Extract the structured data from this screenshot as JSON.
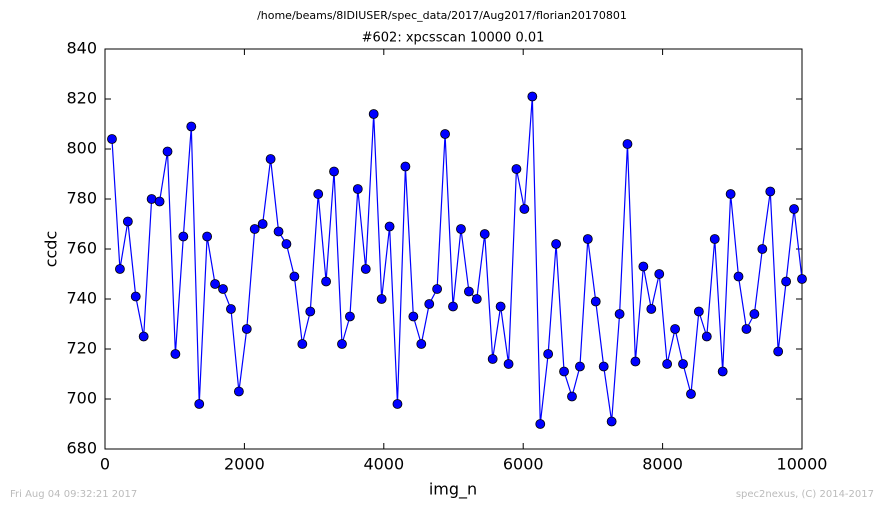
{
  "chart_data": {
    "type": "line",
    "suptitle": "/home/beams/8IDIUSER/spec_data/2017/Aug2017/florian20170801",
    "title": "#602: xpcsscan 10000 0.01",
    "xlabel": "img_n",
    "ylabel": "ccdc",
    "x": [
      100,
      214,
      328,
      441,
      555,
      669,
      783,
      897,
      1010,
      1124,
      1238,
      1352,
      1465,
      1579,
      1693,
      1807,
      1921,
      2034,
      2148,
      2262,
      2376,
      2490,
      2603,
      2717,
      2831,
      2945,
      3059,
      3172,
      3286,
      3400,
      3514,
      3627,
      3741,
      3855,
      3969,
      4083,
      4196,
      4310,
      4424,
      4538,
      4652,
      4765,
      4879,
      4993,
      5107,
      5221,
      5334,
      5448,
      5562,
      5676,
      5790,
      5903,
      6017,
      6131,
      6245,
      6358,
      6472,
      6586,
      6700,
      6814,
      6927,
      7041,
      7155,
      7269,
      7383,
      7496,
      7610,
      7724,
      7838,
      7952,
      8065,
      8179,
      8293,
      8407,
      8520,
      8634,
      8748,
      8862,
      8976,
      9089,
      9203,
      9317,
      9431,
      9545,
      9658,
      9772,
      9886,
      10000
    ],
    "series": [
      {
        "name": "ccdc",
        "color": "#0000ff",
        "values": [
          804,
          752,
          771,
          741,
          725,
          780,
          779,
          799,
          718,
          765,
          809,
          698,
          765,
          746,
          744,
          736,
          703,
          728,
          768,
          770,
          796,
          767,
          762,
          749,
          722,
          735,
          782,
          747,
          791,
          722,
          733,
          784,
          752,
          814,
          740,
          769,
          698,
          793,
          733,
          722,
          738,
          744,
          806,
          737,
          768,
          743,
          740,
          766,
          716,
          737,
          714,
          792,
          776,
          821,
          690,
          718,
          762,
          711,
          701,
          713,
          764,
          739,
          713,
          691,
          734,
          802,
          715,
          753,
          736,
          750,
          714,
          728,
          714,
          702,
          735,
          725,
          764,
          711,
          782,
          749,
          728,
          734,
          760,
          783,
          719,
          747,
          776,
          748
        ]
      }
    ],
    "xlim": [
      0,
      10000
    ],
    "xticks": [
      0,
      2000,
      4000,
      6000,
      8000,
      10000
    ],
    "ylim": [
      680,
      840
    ],
    "yticks": [
      680,
      700,
      720,
      740,
      760,
      780,
      800,
      820,
      840
    ],
    "grid": false
  },
  "footer": {
    "left": "Fri Aug 04 09:32:21 2017",
    "right": "spec2nexus, (C) 2014-2017"
  }
}
